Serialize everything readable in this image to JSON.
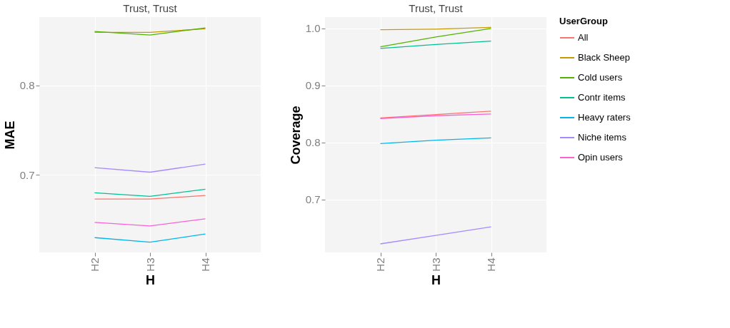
{
  "chart_data": [
    {
      "type": "line",
      "title": "Trust, Trust",
      "xlabel": "H",
      "ylabel": "MAE",
      "categories": [
        "H2",
        "H3",
        "H4"
      ],
      "ylim": [
        0.6135,
        0.876
      ],
      "yticks": [
        0.7,
        0.8
      ],
      "grid": true,
      "legend": "right",
      "line_style": "solid",
      "marker": "none",
      "series": [
        {
          "name": "All",
          "color": "#f8766d",
          "values": [
            0.673,
            0.673,
            0.677
          ]
        },
        {
          "name": "Black Sheep",
          "color": "#c49a00",
          "values": [
            0.859,
            0.859,
            0.863
          ]
        },
        {
          "name": "Cold users",
          "color": "#53b400",
          "values": [
            0.86,
            0.856,
            0.864
          ]
        },
        {
          "name": "Contr items",
          "color": "#00c094",
          "values": [
            0.68,
            0.676,
            0.684
          ]
        },
        {
          "name": "Heavy raters",
          "color": "#00b6eb",
          "values": [
            0.63,
            0.625,
            0.634
          ]
        },
        {
          "name": "Niche items",
          "color": "#a58aff",
          "values": [
            0.708,
            0.703,
            0.712
          ]
        },
        {
          "name": "Opin users",
          "color": "#fb61d7",
          "values": [
            0.647,
            0.643,
            0.651
          ]
        }
      ]
    },
    {
      "type": "line",
      "title": "Trust, Trust",
      "xlabel": "H",
      "ylabel": "Coverage",
      "categories": [
        "H2",
        "H3",
        "H4"
      ],
      "ylim": [
        0.607,
        1.02
      ],
      "yticks": [
        0.7,
        0.8,
        0.9,
        {
          "value": 1.0,
          "label": "1.0"
        }
      ],
      "grid": true,
      "legend": "right",
      "legend_title": "UserGroup",
      "line_style": "solid",
      "marker": "none",
      "series": [
        {
          "name": "All",
          "color": "#f8766d",
          "values": [
            0.843,
            0.849,
            0.855
          ]
        },
        {
          "name": "Black Sheep",
          "color": "#c49a00",
          "values": [
            0.998,
            0.999,
            1.002
          ]
        },
        {
          "name": "Cold users",
          "color": "#53b400",
          "values": [
            0.968,
            0.985,
            1.0
          ]
        },
        {
          "name": "Contr items",
          "color": "#00c094",
          "values": [
            0.965,
            0.972,
            0.978
          ]
        },
        {
          "name": "Heavy raters",
          "color": "#00b6eb",
          "values": [
            0.798,
            0.804,
            0.808
          ]
        },
        {
          "name": "Niche items",
          "color": "#a58aff",
          "values": [
            0.622,
            0.637,
            0.652
          ]
        },
        {
          "name": "Opin users",
          "color": "#fb61d7",
          "values": [
            0.842,
            0.847,
            0.85
          ]
        }
      ]
    }
  ]
}
